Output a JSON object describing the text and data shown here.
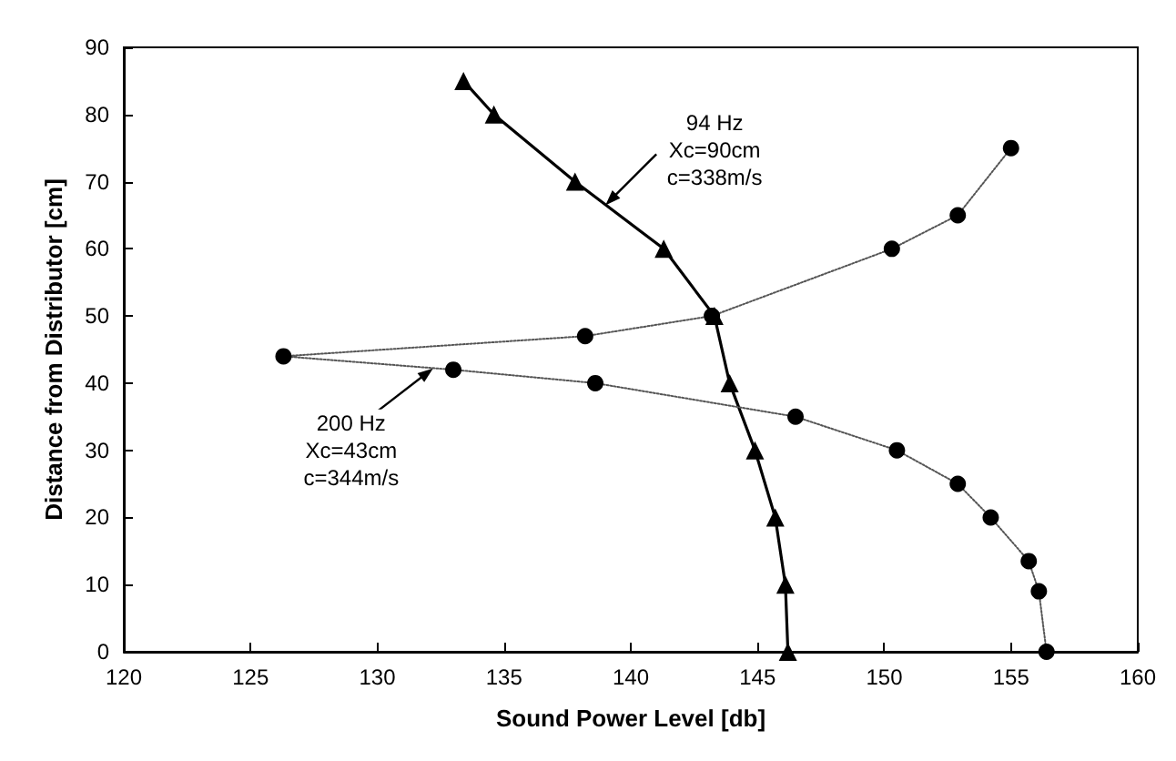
{
  "chart_data": {
    "type": "line",
    "xlabel": "Sound Power Level [db]",
    "ylabel": "Distance from Distributor [cm]",
    "xlim": [
      120,
      160
    ],
    "xticks": [
      120,
      125,
      130,
      135,
      140,
      145,
      150,
      155,
      160
    ],
    "ylim": [
      0,
      90
    ],
    "yticks": [
      0,
      10,
      20,
      30,
      40,
      50,
      60,
      70,
      80,
      90
    ],
    "grid": false,
    "series": [
      {
        "color": "#000000",
        "marker": "triangle",
        "line_style": "solid",
        "x": [
          133.4,
          134.6,
          137.8,
          141.3,
          143.3,
          143.9,
          144.9,
          145.7,
          146.1,
          146.2
        ],
        "values": [
          85,
          80,
          70,
          60,
          50,
          40,
          30,
          20,
          10,
          0
        ]
      },
      {
        "color": "#000000",
        "marker": "circle",
        "line_style": "dotted",
        "x": [
          155,
          152.9,
          150.3,
          143.2,
          138.2,
          126.3,
          133,
          138.6,
          146.5,
          150.5,
          152.9,
          154.2,
          155.7,
          156.1,
          156.4
        ],
        "values": [
          75,
          65,
          60,
          50,
          47,
          44,
          42,
          40,
          35,
          30,
          25,
          20,
          13.5,
          9,
          0
        ]
      }
    ],
    "annotations": [
      {
        "text": "94 Hz\nXc=90cm\nc=338m/s",
        "x": 139.0,
        "y": 66.5
      },
      {
        "text": "200 Hz\nXc=43cm\nc=344m/s",
        "x": 132.2,
        "y": 42.2
      }
    ]
  }
}
